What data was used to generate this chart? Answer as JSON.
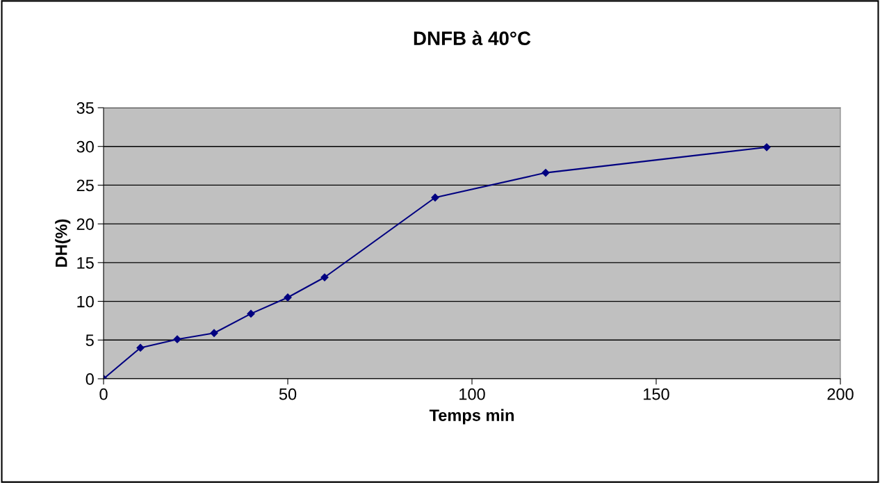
{
  "chart_data": {
    "type": "line",
    "title": "DNFB à 40°C",
    "xlabel": "Temps min",
    "ylabel": "DH(%)",
    "x": [
      0,
      10,
      20,
      30,
      40,
      50,
      60,
      90,
      120,
      180
    ],
    "series": [
      {
        "color": "#000080",
        "values": [
          0,
          4.0,
          5.1,
          5.9,
          8.4,
          10.5,
          13.1,
          23.4,
          26.6,
          29.9
        ]
      }
    ],
    "xlim": [
      0,
      200
    ],
    "xticks": [
      0,
      50,
      100,
      150,
      200
    ],
    "ylim": [
      0,
      35
    ],
    "yticks": [
      0,
      5,
      10,
      15,
      20,
      25,
      30,
      35
    ],
    "grid": "y",
    "marker": "diamond",
    "line_style": "solid"
  }
}
